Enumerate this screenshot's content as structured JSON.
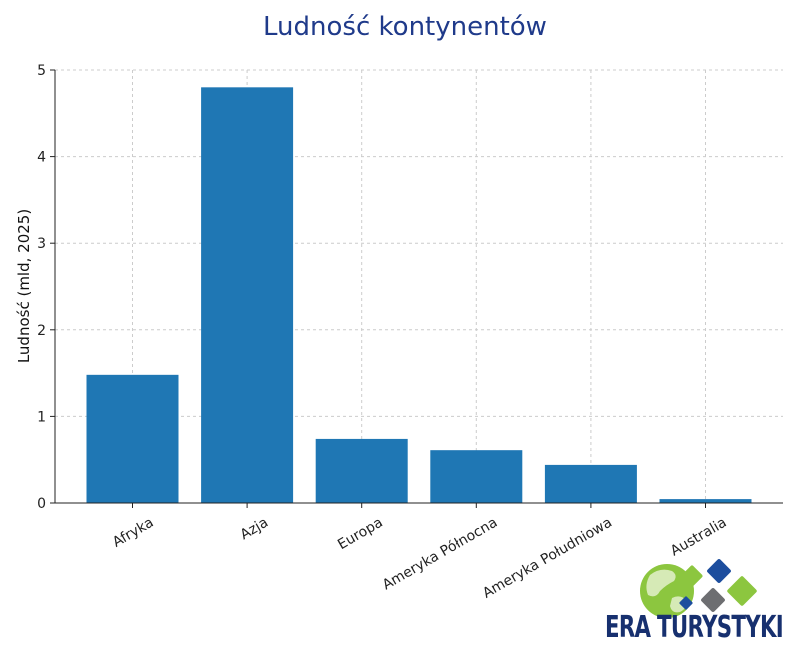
{
  "chart_data": {
    "type": "bar",
    "title": "Ludność kontynentów",
    "xlabel": "",
    "ylabel": "Ludność (mld, 2025)",
    "categories": [
      "Afryka",
      "Azja",
      "Europa",
      "Ameryka Północna",
      "Ameryka Południowa",
      "Australia"
    ],
    "values": [
      1.48,
      4.8,
      0.74,
      0.61,
      0.44,
      0.045
    ],
    "ylim": [
      0,
      5
    ],
    "yticks": [
      "0",
      "1",
      "2",
      "3",
      "4",
      "5"
    ],
    "bar_color": "#1f77b4",
    "grid": true,
    "legend": "none"
  },
  "logo": {
    "text": "ERA TURYSTYKI",
    "colors": {
      "text": "#17306f",
      "green": "#8cc63f",
      "blue": "#1d4e9e",
      "gray": "#6d6e71"
    }
  }
}
